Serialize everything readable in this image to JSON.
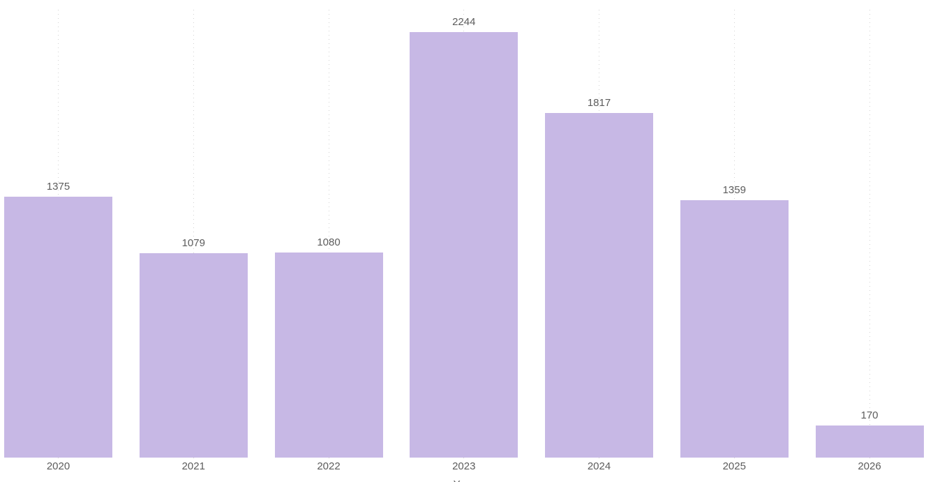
{
  "chart_data": {
    "type": "bar",
    "title": "",
    "categories": [
      "2020",
      "2021",
      "2022",
      "2023",
      "2024",
      "2025",
      "2026"
    ],
    "values": [
      1375,
      1079,
      1080,
      2244,
      1817,
      1359,
      170
    ],
    "data_labels": [
      "1375",
      "1079",
      "1080",
      "2244",
      "1817",
      "1359",
      "170"
    ],
    "xlabel": "Year",
    "ylabel": "",
    "ylim": [
      0,
      2360
    ],
    "y_axis_visible": false,
    "grid": "vertical-dotted",
    "legend": "none",
    "colors": {
      "bar": "#c7b8e5",
      "label": "#5c5c5c",
      "gridline": "#d2d2d2",
      "background": "#ffffff"
    }
  }
}
